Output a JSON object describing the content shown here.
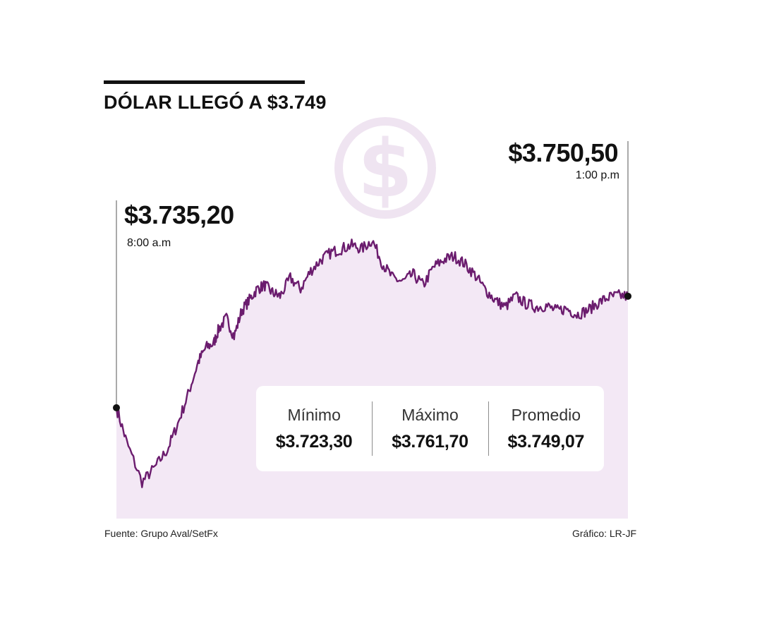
{
  "title": "DÓLAR LLEGÓ A $3.749",
  "callouts": {
    "start": {
      "value": "$3.735,20",
      "time": "8:00 a.m"
    },
    "end": {
      "value": "$3.750,50",
      "time": "1:00 p.m"
    }
  },
  "stats": [
    {
      "label": "Mínimo",
      "value": "$3.723,30"
    },
    {
      "label": "Máximo",
      "value": "$3.761,70"
    },
    {
      "label": "Promedio",
      "value": "$3.749,07"
    }
  ],
  "source": "Fuente: Grupo Aval/SetFx",
  "credit": "Gráfico: LR-JF",
  "colors": {
    "line": "#6b1c6e",
    "area": "#f3e8f5",
    "icon": "#efe4f1",
    "text": "#111111"
  },
  "icon": "dollar-coin-icon",
  "chart_data": {
    "type": "area",
    "x_start": "8:00 a.m",
    "x_end": "1:00 p.m",
    "ylim": [
      3720,
      3765
    ],
    "x": [
      0,
      0.02,
      0.05,
      0.075,
      0.1,
      0.12,
      0.14,
      0.16,
      0.175,
      0.19,
      0.2,
      0.215,
      0.23,
      0.245,
      0.26,
      0.275,
      0.29,
      0.305,
      0.32,
      0.34,
      0.36,
      0.38,
      0.4,
      0.42,
      0.44,
      0.46,
      0.48,
      0.5,
      0.52,
      0.54,
      0.56,
      0.58,
      0.6,
      0.62,
      0.64,
      0.66,
      0.68,
      0.7,
      0.72,
      0.74,
      0.76,
      0.78,
      0.8,
      0.82,
      0.84,
      0.86,
      0.88,
      0.9,
      0.92,
      0.94,
      0.96,
      0.98,
      1.0
    ],
    "values": [
      3735.2,
      3730.5,
      3725.0,
      3727.0,
      3729.5,
      3733.0,
      3737.0,
      3741.5,
      3743.5,
      3744.0,
      3746.0,
      3747.5,
      3745.0,
      3748.5,
      3750.0,
      3751.5,
      3752.0,
      3751.0,
      3750.5,
      3753.0,
      3751.5,
      3754.0,
      3755.5,
      3756.5,
      3757.0,
      3757.5,
      3757.0,
      3758.2,
      3755.0,
      3753.0,
      3752.5,
      3753.5,
      3752.0,
      3754.5,
      3755.5,
      3756.0,
      3755.0,
      3753.5,
      3751.5,
      3750.0,
      3749.0,
      3750.5,
      3749.5,
      3749.0,
      3749.2,
      3748.5,
      3748.8,
      3748.0,
      3748.5,
      3749.5,
      3750.3,
      3750.6,
      3750.5
    ]
  }
}
